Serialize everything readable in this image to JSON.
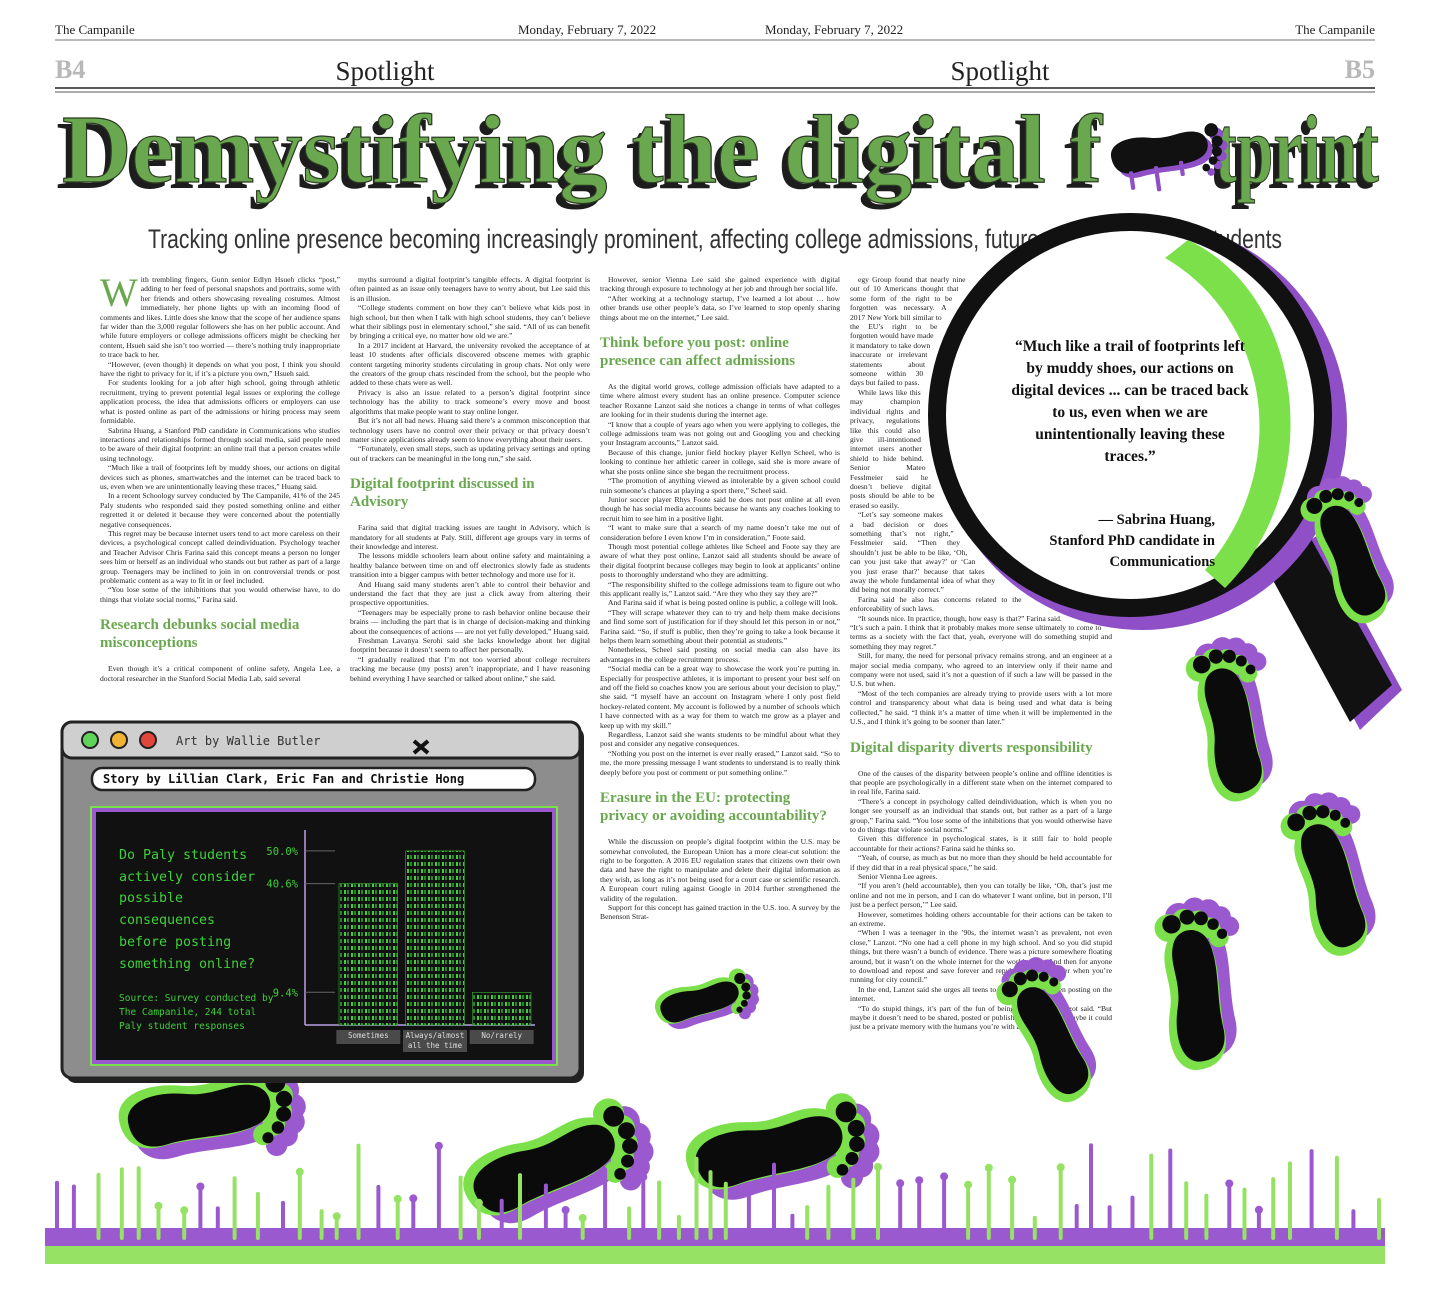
{
  "masthead": {
    "paper_left": "The Campanile",
    "date_left": "Monday, February 7, 2022",
    "date_right": "Monday, February 7, 2022",
    "paper_right": "The Campanile",
    "page_left": "B4",
    "section_left": "Spotlight",
    "section_right": "Spotlight",
    "page_right": "B5"
  },
  "headline_start": "Demystifying the digital f",
  "headline_end": "tprint",
  "subheadline": "Tracking online presence becoming increasingly prominent, affecting college admissions, future opportunities for students",
  "columns": [
    {
      "blocks": [
        {
          "kind": "p",
          "drop_cap": "W",
          "text": "ith trembling fingers, Gunn senior Edlyn Hsueh clicks “post,” adding to her feed of personal snapshots and portraits, some with her friends and others showcasing revealing costumes. Almost immediately, her phone lights up with an incoming flood of comments and likes. Little does she know that the scope of her audience spans far wider than the 3,000 regular followers she has on her public account. And while future employers or college admissions officers might be checking her content, Hsueh said she isn’t too worried — there’s nothing truly inappropriate to trace back to her."
        },
        {
          "kind": "p",
          "text": "“However, (even though) it depends on what you post, I think you should have the right to privacy for it, if it’s a picture you own,” Hsueh said."
        },
        {
          "kind": "p",
          "text": "For students looking for a job after high school, going through athletic recruitment, trying to prevent potential legal issues or exploring the college application process, the idea that admissions officers or employers can use what is posted online as part of the admissions or hiring process may seem formidable."
        },
        {
          "kind": "p",
          "text": "Sabrina Huang, a Stanford PhD candidate in Communications who studies interactions and relationships formed through social media, said people need to be aware of their digital footprint: an online trail that a person creates while using technology."
        },
        {
          "kind": "p",
          "text": "“Much like a trail of footprints left by muddy shoes, our actions on digital devices such as phones, smartwatches and the internet can be traced back to us, even when we are unintentionally leaving these traces,” Huang said."
        },
        {
          "kind": "p",
          "text": "In a recent Schoology survey conducted by The Campanile, 41% of the 245 Paly students who responded said they posted something online and either regretted it or deleted it because they were concerned about the potentially negative consequences."
        },
        {
          "kind": "p",
          "text": "This regret may be because internet users tend to act more careless on their devices, a psychological concept called deindividuation. Psychology teacher and Teacher Advisor Chris Farina said this concept means a person no longer sees him or herself as an individual who stands out but rather as part of a large group. Teenagers may be inclined to join in on controversial trends or post problematic content as a way to fit in or feel included."
        },
        {
          "kind": "p",
          "text": "“You lose some of the inhibitions that you would otherwise have, to do things that violate social norms,” Farina said."
        },
        {
          "kind": "h",
          "text": "Research debunks social media misconceptions"
        },
        {
          "kind": "p",
          "text": "Even though it’s a critical component of online safety, Angela Lee, a doctoral researcher in the Stanford Social Media Lab, said several"
        }
      ]
    },
    {
      "blocks": [
        {
          "kind": "p",
          "text": "myths surround a digital footprint’s tangible effects. A digital footprint is often painted as an issue only teenagers have to worry about, but Lee said this is an illusion."
        },
        {
          "kind": "p",
          "text": "“College students comment on how they can’t believe what kids post in high school, but then when I talk with high school students, they can’t believe what their siblings post in elementary school,” she said. “All of us can benefit by bringing a critical eye, no matter how old we are.”"
        },
        {
          "kind": "p",
          "text": "In a 2017 incident at Harvard, the university revoked the acceptance of at least 10 students after officials discovered obscene memes with graphic content targeting minority students circulating in group chats. Not only were the creators of the group chats rescinded from the school, but the people who added to these chats were as well."
        },
        {
          "kind": "p",
          "text": "Privacy is also an issue related to a person’s digital footprint since technology has the ability to track someone’s every move and boost algorithms that make people want to stay online longer."
        },
        {
          "kind": "p",
          "text": "But it’s not all bad news. Huang said there’s a common misconception that technology users have no control over their privacy or that privacy doesn’t matter since applications already seem to know everything about their users."
        },
        {
          "kind": "p",
          "text": "“Fortunately, even small steps, such as updating privacy settings and opting out of trackers can be meaningful in the long run,” she said."
        },
        {
          "kind": "h",
          "text": "Digital footprint discussed in Advisory"
        },
        {
          "kind": "p",
          "text": "Farina said that digital tracking issues are taught in Advisory, which is mandatory for all students at Paly. Still, different age groups vary in terms of their knowledge and interest."
        },
        {
          "kind": "p",
          "text": "The lessons middle schoolers learn about online safety and maintaining a healthy balance between time on and off electronics slowly fade as students transition into a bigger campus with better technology and more use for it."
        },
        {
          "kind": "p",
          "text": "And Huang said many students aren’t able to control their behavior and understand the fact that they are just a click away from altering their prospective opportunities."
        },
        {
          "kind": "p",
          "text": "“Teenagers may be especially prone to rash behavior online because their brains — including the part that is in charge of decision-making and thinking about the consequences of actions — are not yet fully developed,” Huang said."
        },
        {
          "kind": "p",
          "text": "Freshman Lavanya Serohi said she lacks knowledge about her digital footprint because it doesn’t seem to affect her personally."
        },
        {
          "kind": "p",
          "text": "“I gradually realized that I’m not too worried about college recruiters tracking me because (my posts) aren’t inappropriate, and I have reasoning behind everything I have searched or talked about online,” she said."
        }
      ]
    },
    {
      "blocks": [
        {
          "kind": "p",
          "text": "However, senior Vienna Lee said she gained experience with digital tracking through exposure to technology at her job and through her social life."
        },
        {
          "kind": "p",
          "text": "“After working at a technology startup, I’ve learned a lot about … how other brands use other people’s data, so I’ve learned to stop openly sharing things about me on the internet,” Lee said."
        },
        {
          "kind": "h",
          "text": "Think before you post: online presence can affect admissions"
        },
        {
          "kind": "p",
          "text": "As the digital world grows, college admission officials have adapted to a time where almost every student has an online presence. Computer science teacher Roxanne Lanzot said she notices a change in terms of what colleges are looking for in their students during the internet age."
        },
        {
          "kind": "p",
          "text": "“I know that a couple of years ago when you were applying to colleges, the college admissions team was not going out and Googling you and checking your Instagram accounts,” Lanzot said."
        },
        {
          "kind": "p",
          "text": "Because of this change, junior field hockey player Kellyn Scheel, who is looking to continue her athletic career in college, said she is more aware of what she posts online since she began the recruitment process."
        },
        {
          "kind": "p",
          "text": "“The promotion of anything viewed as intolerable by a given school could ruin someone’s chances at playing a sport there,” Scheel said."
        },
        {
          "kind": "p",
          "text": "Junior soccer player Rhys Foote said he does not post online at all even though he has social media accounts because he wants any coaches looking to recruit him to see him in a positive light."
        },
        {
          "kind": "p",
          "text": "“I want to make sure that a search of my name doesn’t take me out of consideration before I even know I’m in consideration,” Foote said."
        },
        {
          "kind": "p",
          "text": "Though most potential college athletes like Scheel and Foote say they are aware of what they post online, Lanzot said all students should be aware of their digital footprint because colleges may begin to look at applicants’ online posts to thoroughly understand who they are admitting."
        },
        {
          "kind": "p",
          "text": "“The responsibility shifted to the college admissions team to figure out who this applicant really is,” Lanzot said. “Are they who they say they are?”"
        },
        {
          "kind": "p",
          "text": "And Farina said if what is being posted online is public, a college will look."
        },
        {
          "kind": "p",
          "text": "“They will scrape whatever they can to try and help them make decisions and find some sort of justification for if they should let this person in or not,” Farina said. “So, if stuff is public, then they’re going to take a look because it helps them learn something about their potential as students.”"
        },
        {
          "kind": "p",
          "text": "Nonetheless, Scheel said posting on social media can also have its advantages in the college recruitment process."
        },
        {
          "kind": "p",
          "text": "“Social media can be a great way to showcase the work you’re putting in. Especially for prospective athletes, it is important to present your best self on and off the field so coaches know you are serious about your decision to play,” she said. “I myself have an account on Instagram where I only post field hockey-related content. My account is followed by a number of schools which I have connected with as a way for them to watch me grow as a player and keep up with my skill.”"
        },
        {
          "kind": "p",
          "text": "Regardless, Lanzot said she wants students to be mindful about what they post and consider any negative consequences."
        },
        {
          "kind": "p",
          "text": "“Nothing you post on the internet is ever really erased,” Lanzot said. “So to me, the more pressing message I want students to understand is to really think deeply before you post or comment or put something online.”"
        },
        {
          "kind": "h",
          "text": "Erasure in the EU: protecting privacy or avoiding accountability?"
        },
        {
          "kind": "p",
          "text": "While the discussion on people’s digital footprint within the U.S. may be somewhat convoluted, the European Union has a more clear-cut solution: the right to be forgotten. A 2016 EU regulation states that citizens own their own data and have the right to manipulate and delete their digital information as they wish, as long as it’s not being used for a court case or scientific research. A European court ruling against Google in 2014 further strengthened the validity of the regulation."
        },
        {
          "kind": "p",
          "text": "Support for this concept has gained traction in the U.S. too. A survey by the Benenson Strat-"
        }
      ]
    },
    {
      "blocks": [
        {
          "kind": "p",
          "text": "egy Group found that nearly nine out of 10 Americans thought that some form of the right to be forgotten was necessary. A 2017 New York bill similar to the EU’s right to be forgotten would have made it mandatory to take down inaccurate or irrelevant statements about someone within 30 days but failed to pass."
        },
        {
          "kind": "p",
          "text": "While laws like this may champion individual rights and privacy, regulations like this could also give ill-intentioned internet users another shield to hide behind. Senior Mateo Fesslmeier said he doesn’t believe digital posts should be able to be erased so easily."
        },
        {
          "kind": "p",
          "text": "“Let’s say someone makes a bad decision or does something that’s not right,” Fesslmeier said. “Then they shouldn’t just be able to be like, ‘Oh, can you just take that away?’ or ‘Can you just erase that?’ because that takes away the whole fundamental idea of what they did being not morally correct.”"
        },
        {
          "kind": "p",
          "text": "Farina said he also has concerns related to the enforceability of such laws."
        },
        {
          "kind": "p",
          "text": "“It sounds nice. In practice, though, how easy is that?” Farina said. “It’s such a pain. I think that it probably makes more sense ultimately to come to terms as a society with the fact that, yeah, everyone will do something stupid and something they may regret.”"
        },
        {
          "kind": "p",
          "text": "Still, for many, the need for personal privacy remains strong, and an engineer at a major social media company, who agreed to an interview only if their name and company were not used, said it’s not a question of if such a law will be passed in the U.S. but when."
        },
        {
          "kind": "p",
          "text": "“Most of the tech companies are already trying to provide users with a lot more control and transparency about what data is being used and what data is being collected,” he said. “I think it’s a matter of time when it will be implemented in the U.S., and I think it’s going to be sooner than later.”"
        },
        {
          "kind": "h",
          "text": "Digital disparity diverts responsibility"
        },
        {
          "kind": "p",
          "text": "One of the causes of the disparity between people’s online and offline identities is that people are psychologically in a different state when on the internet compared to in real life, Farina said."
        },
        {
          "kind": "p",
          "text": "“There’s a concept in psychology called deindividuation, which is when you no longer see yourself as an individual that stands out, but rather as a part of a large group,” Farina said. “You lose some of the inhibitions that you would otherwise have to do things that violate social norms.”"
        },
        {
          "kind": "p",
          "text": "Given this difference in psychological states, is it still fair to hold people accountable for their actions? Farina said he thinks so."
        },
        {
          "kind": "p",
          "text": "“Yeah, of course, as much as but no more than they should be held accountable for if they did that in a real physical space,” he said."
        },
        {
          "kind": "p",
          "text": "Senior Vienna Lee agrees."
        },
        {
          "kind": "p",
          "text": "“If you aren’t (held accountable), then you can totally be like, ‘Oh, that’s just me online and not me in person, and I can do whatever I want online, but in person, I’ll just be a perfect person,’” Lee said."
        },
        {
          "kind": "p",
          "text": "However, sometimes holding others accountable for their actions can be taken to an extreme."
        },
        {
          "kind": "p",
          "text": "“When I was a teenager in the ’90s, the internet wasn’t as prevalent, not even close,” Lanzot. “No one had a cell phone in my high school. And so you did stupid things, but there wasn’t a bunch of evidence. There was a picture somewhere floating around, but it wasn’t on the whole internet for the world to see. And then for anyone to download and repost and save forever and republish 20 years later when you’re running for city council.”"
        },
        {
          "kind": "p",
          "text": "In the end, Lanzot said she urges all teens to be more careful when posting on the internet."
        },
        {
          "kind": "p",
          "text": "“To do stupid things, it’s part of the fun of being a teenager,” Lanzot said. “But maybe it doesn’t need to be shared, posted or published with anyone. Maybe it could just be a private memory with the humans you’re with at that moment.”"
        }
      ]
    }
  ],
  "pull_quote": {
    "quote": "“Much like a trail of footprints left by muddy shoes, our actions on digital devices ... can be traced back to us, even when we are unintentionally leaving these traces.”",
    "attribution": "— Sabrina Huang, Stanford PhD candidate in Communications"
  },
  "graphic": {
    "credit": "Art by Wallie Butler",
    "byline": "Story by Lillian Clark, Eric Fan and Christie Hong",
    "question": "Do Paly students actively consider possible consequences before posting something online?",
    "source": "Source: Survey conducted by The Campanile, 244 total Paly student responses"
  },
  "chart_data": {
    "type": "bar",
    "categories": [
      "Sometimes",
      "Always/almost all the time",
      "No/rarely"
    ],
    "values": [
      40.6,
      50,
      9.4
    ],
    "color": "#3fcf3a",
    "ylim": [
      0,
      56
    ],
    "yticks": [
      {
        "value": 50,
        "label": "50.0%"
      },
      {
        "value": 40.6,
        "label": "40.6%"
      },
      {
        "value": 9.4,
        "label": "9.4%"
      }
    ],
    "grid": false
  }
}
